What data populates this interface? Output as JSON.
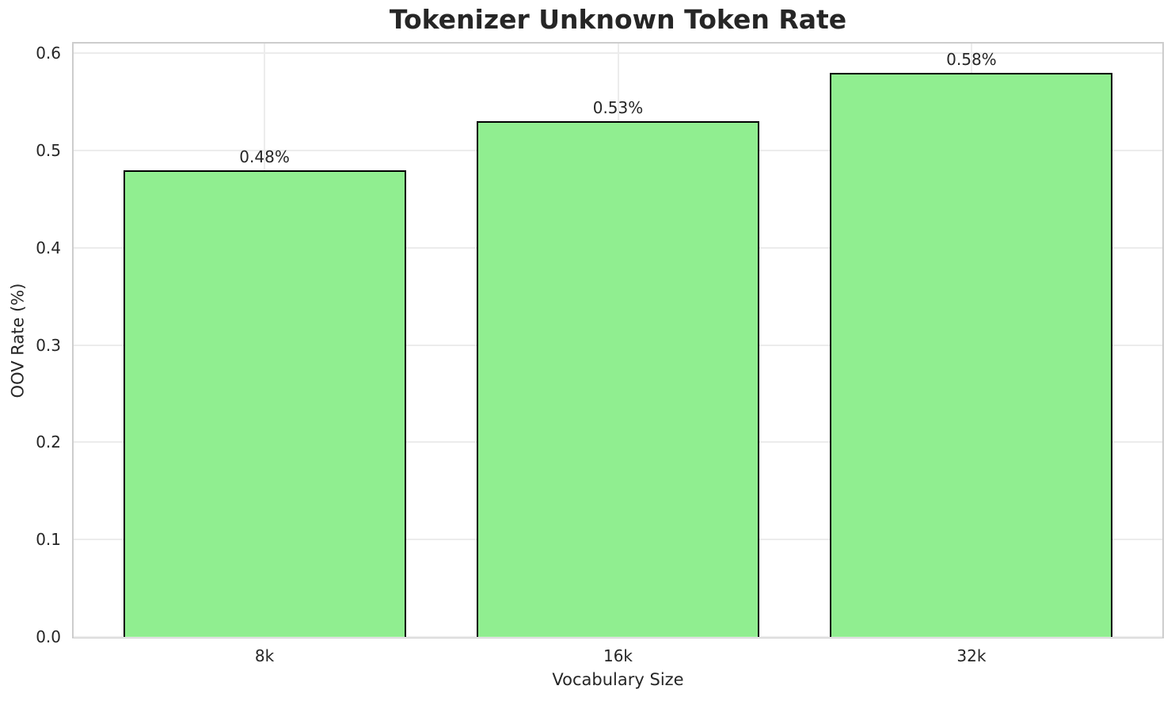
{
  "chart_data": {
    "type": "bar",
    "title": "Tokenizer Unknown Token Rate",
    "xlabel": "Vocabulary Size",
    "ylabel": "OOV Rate (%)",
    "categories": [
      "8k",
      "16k",
      "32k"
    ],
    "values": [
      0.48,
      0.53,
      0.58
    ],
    "bar_labels": [
      "0.48%",
      "0.53%",
      "0.58%"
    ],
    "ylim": [
      0,
      0.61
    ],
    "yticks": [
      0,
      0.1,
      0.2,
      0.3,
      0.4,
      0.5,
      0.6
    ],
    "ytick_labels": [
      "0.0",
      "0.1",
      "0.2",
      "0.3",
      "0.4",
      "0.5",
      "0.6"
    ],
    "xlim": [
      -0.54,
      2.54
    ],
    "bar_width_units": 0.8,
    "grid": true,
    "legend": "none",
    "colors": {
      "bar_fill": "#90ee90",
      "bar_edge": "#000000",
      "grid": "#ececec",
      "spine": "#cdcdcd",
      "text": "#262626",
      "background": "#ffffff"
    }
  }
}
